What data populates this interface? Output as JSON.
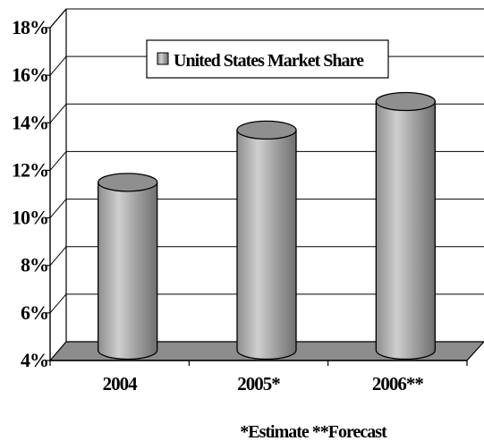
{
  "chart_data": {
    "type": "bar",
    "style": "3d-cylinder",
    "categories": [
      "2004",
      "2005*",
      "2006**"
    ],
    "series": [
      {
        "name": "United States Market Share",
        "values": [
          11.1,
          13.3,
          14.5
        ]
      }
    ],
    "yticks": [
      "4%",
      "6%",
      "8%",
      "10%",
      "12%",
      "14%",
      "16%",
      "18%"
    ],
    "ylim": [
      4,
      18
    ],
    "grid": true,
    "legend_position": "top-center",
    "footnote": "*Estimate **Forecast",
    "colors": {
      "bar": "#9a9a9a",
      "bar_light": "#e2e2e2",
      "floor": "#8c8c8c"
    }
  }
}
